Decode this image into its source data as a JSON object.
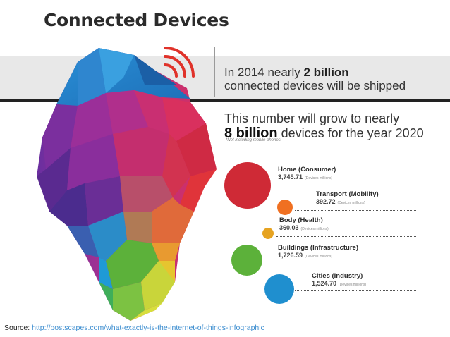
{
  "title": "Connected Devices",
  "headline": {
    "prefix": "In 2014 nearly ",
    "bold": "2 billion",
    "suffix": "connected devices will be shipped"
  },
  "growth": {
    "line1": "This number will grow to nearly",
    "bold": "8 billion",
    "line2_rest": " devices for the year 2020",
    "note": "*Not including mobile phones"
  },
  "categories": [
    {
      "name": "Home (Consumer)",
      "value": "3,745.71",
      "unit": "(Devices millions)",
      "color": "#cf2a36"
    },
    {
      "name": "Transport (Mobility)",
      "value": "392.72",
      "unit": "(Devices millions)",
      "color": "#f07021"
    },
    {
      "name": "Body (Health)",
      "value": "360.03",
      "unit": "(Devices millions)",
      "color": "#e6a321"
    },
    {
      "name": "Buildings (Infrastructure)",
      "value": "1,726.59",
      "unit": "(Devices millions)",
      "color": "#5cb13a"
    },
    {
      "name": "Cities (Industry)",
      "value": "1,524.70",
      "unit": "(Devices millions)",
      "color": "#1f8fcf"
    }
  ],
  "source": {
    "label": "Source:",
    "url": "http://postscapes.com/what-exactly-is-the-internet-of-things-infographic"
  },
  "colors": {
    "wifi": "#e0322a",
    "band": "#e8e8e8",
    "link": "#3a8ccf"
  }
}
